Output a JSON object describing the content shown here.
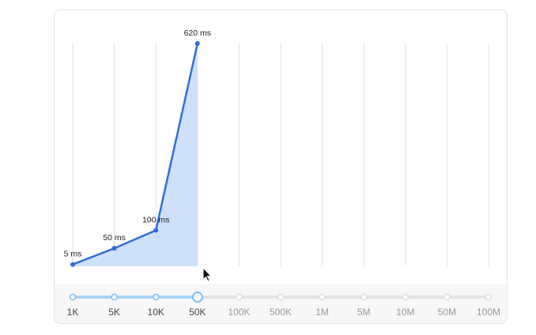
{
  "chart_data": {
    "type": "line",
    "categories": [
      "1K",
      "5K",
      "10K",
      "50K",
      "100K",
      "500K",
      "1M",
      "5M",
      "10M",
      "50M",
      "100M"
    ],
    "values": [
      5,
      50,
      100,
      620,
      null,
      null,
      null,
      null,
      null,
      null,
      null
    ],
    "value_labels": [
      "5 ms",
      "50 ms",
      "100 ms",
      "620 ms",
      null,
      null,
      null,
      null,
      null,
      null,
      null
    ],
    "color": "#2f6fd6",
    "area_color": "#cfe0fb",
    "ylim": [
      0,
      620
    ],
    "grid": true
  }
}
